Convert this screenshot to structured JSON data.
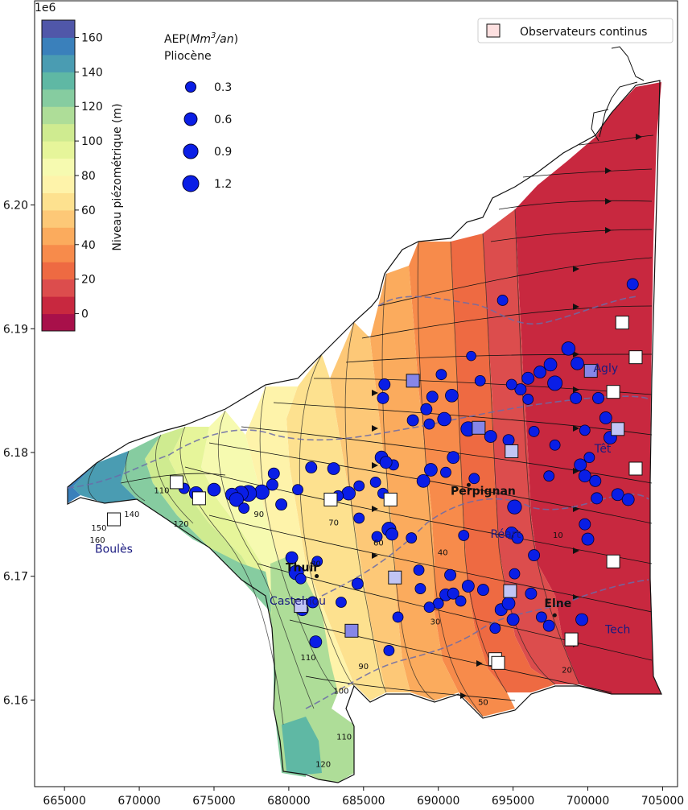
{
  "map": {
    "offset_label": "1e6",
    "x_ticks": [
      "665000",
      "670000",
      "675000",
      "680000",
      "685000",
      "690000",
      "695000",
      "700000",
      "705000"
    ],
    "x_tick_values": [
      665000,
      670000,
      675000,
      680000,
      685000,
      690000,
      695000,
      700000,
      705000
    ],
    "y_ticks": [
      "6.16",
      "6.17",
      "6.18",
      "6.19",
      "6.20"
    ],
    "y_tick_values": [
      6.16,
      6.17,
      6.18,
      6.19,
      6.2
    ],
    "x_range": [
      663000,
      706000
    ],
    "y_range": [
      6.153,
      6.2165
    ],
    "colorbar": {
      "label": "Niveau piézométrique (m)",
      "ticks": [
        "0",
        "20",
        "40",
        "60",
        "80",
        "100",
        "120",
        "140",
        "160"
      ],
      "tick_values": [
        0,
        20,
        40,
        60,
        80,
        100,
        120,
        140,
        160
      ],
      "range": [
        -10,
        170
      ],
      "colors": [
        "#a8104a",
        "#c8283f",
        "#dc4d4d",
        "#ee6a42",
        "#f78b4b",
        "#fbab5d",
        "#fdc877",
        "#fde18f",
        "#fef3aa",
        "#f6fab0",
        "#e6f59a",
        "#cfeb90",
        "#aedd98",
        "#86cca0",
        "#5fb8a4",
        "#4a9cb2",
        "#3a80bb",
        "#5057a9"
      ]
    },
    "size_legend": {
      "title_line1": "AEP(Mm³/an)",
      "title_line2": "Pliocène",
      "entries": [
        "0.3",
        "0.6",
        "0.9",
        "1.2"
      ],
      "entry_values": [
        0.3,
        0.6,
        0.9,
        1.2
      ]
    },
    "obs_legend": {
      "label": "Observateurs continus"
    },
    "cities": [
      {
        "label": "Perpignan",
        "x": 693000,
        "y": 6.1766
      },
      {
        "label": "Thuir",
        "x": 680900,
        "y": 6.1704
      },
      {
        "label": "Elne",
        "x": 698000,
        "y": 6.1675
      }
    ],
    "rivers": [
      {
        "label": "Boulès",
        "x": 668300,
        "y": 6.1719
      },
      {
        "label": "Castelnou",
        "x": 680600,
        "y": 6.1677
      },
      {
        "label": "Réart",
        "x": 694500,
        "y": 6.1731
      },
      {
        "label": "Têt",
        "x": 701000,
        "y": 6.18
      },
      {
        "label": "Agly",
        "x": 701200,
        "y": 6.1865
      },
      {
        "label": "Tech",
        "x": 702000,
        "y": 6.1654
      }
    ],
    "contour_labels": [
      {
        "t": "10",
        "x": 698000,
        "y": 6.1731
      },
      {
        "t": "20",
        "x": 698600,
        "y": 6.1622
      },
      {
        "t": "30",
        "x": 689800,
        "y": 6.1661
      },
      {
        "t": "40",
        "x": 690300,
        "y": 6.1717
      },
      {
        "t": "50",
        "x": 693000,
        "y": 6.1596
      },
      {
        "t": "60",
        "x": 686000,
        "y": 6.1725
      },
      {
        "t": "70",
        "x": 683000,
        "y": 6.1741
      },
      {
        "t": "80",
        "x": 681800,
        "y": 6.1708
      },
      {
        "t": "90",
        "x": 678000,
        "y": 6.1748
      },
      {
        "t": "90",
        "x": 685000,
        "y": 6.1625
      },
      {
        "t": "100",
        "x": 683500,
        "y": 6.1605
      },
      {
        "t": "110",
        "x": 671500,
        "y": 6.1767
      },
      {
        "t": "110",
        "x": 681300,
        "y": 6.1632
      },
      {
        "t": "110",
        "x": 683700,
        "y": 6.1568
      },
      {
        "t": "120",
        "x": 672800,
        "y": 6.174
      },
      {
        "t": "120",
        "x": 682300,
        "y": 6.1546
      },
      {
        "t": "140",
        "x": 669500,
        "y": 6.1748
      },
      {
        "t": "150",
        "x": 667300,
        "y": 6.1737
      },
      {
        "t": "160",
        "x": 667200,
        "y": 6.1727
      }
    ],
    "wells": [
      [
        694300,
        6.1923,
        0.3
      ],
      [
        703000,
        6.1936,
        0.4
      ],
      [
        692200,
        6.1878,
        0.2
      ],
      [
        698700,
        6.1884,
        0.7
      ],
      [
        699300,
        6.1872,
        0.6
      ],
      [
        697500,
        6.1871,
        0.6
      ],
      [
        696800,
        6.1865,
        0.5
      ],
      [
        696000,
        6.186,
        0.5
      ],
      [
        699200,
        6.1844,
        0.4
      ],
      [
        700700,
        6.1844,
        0.4
      ],
      [
        697800,
        6.1856,
        0.9
      ],
      [
        695500,
        6.1851,
        0.4
      ],
      [
        696000,
        6.1843,
        0.3
      ],
      [
        701200,
        6.1828,
        0.5
      ],
      [
        699800,
        6.1818,
        0.3
      ],
      [
        701500,
        6.1812,
        0.6
      ],
      [
        700100,
        6.1796,
        0.3
      ],
      [
        699500,
        6.179,
        0.5
      ],
      [
        699800,
        6.1781,
        0.5
      ],
      [
        700500,
        6.1777,
        0.4
      ],
      [
        702000,
        6.1766,
        0.5
      ],
      [
        702700,
        6.1762,
        0.5
      ],
      [
        700000,
        6.173,
        0.5
      ],
      [
        700600,
        6.1763,
        0.4
      ],
      [
        699800,
        6.1742,
        0.4
      ],
      [
        695100,
        6.1756,
        0.8
      ],
      [
        694900,
        6.1735,
        0.5
      ],
      [
        695300,
        6.1731,
        0.4
      ],
      [
        692400,
        6.1779,
        0.3
      ],
      [
        692000,
        6.1819,
        0.9
      ],
      [
        693500,
        6.1813,
        0.5
      ],
      [
        694700,
        6.181,
        0.4
      ],
      [
        689200,
        6.1835,
        0.4
      ],
      [
        692800,
        6.1858,
        0.3
      ],
      [
        689600,
        6.1845,
        0.4
      ],
      [
        690900,
        6.1846,
        0.6
      ],
      [
        690400,
        6.1827,
        0.7
      ],
      [
        689400,
        6.1823,
        0.3
      ],
      [
        690200,
        6.1863,
        0.3
      ],
      [
        688300,
        6.1826,
        0.4
      ],
      [
        686400,
        6.1855,
        0.4
      ],
      [
        686300,
        6.1844,
        0.4
      ],
      [
        691000,
        6.1796,
        0.5
      ],
      [
        689500,
        6.1786,
        0.6
      ],
      [
        689000,
        6.1777,
        0.6
      ],
      [
        687000,
        6.179,
        0.3
      ],
      [
        686200,
        6.1796,
        0.6
      ],
      [
        686500,
        6.1792,
        0.5
      ],
      [
        686300,
        6.1767,
        0.3
      ],
      [
        684000,
        6.1767,
        0.7
      ],
      [
        684700,
        6.1773,
        0.3
      ],
      [
        683000,
        6.1787,
        0.5
      ],
      [
        685800,
        6.1776,
        0.3
      ],
      [
        681500,
        6.1788,
        0.4
      ],
      [
        679000,
        6.1783,
        0.4
      ],
      [
        680600,
        6.177,
        0.3
      ],
      [
        678200,
        6.1768,
        0.9
      ],
      [
        678900,
        6.1774,
        0.4
      ],
      [
        677300,
        6.1767,
        1.2
      ],
      [
        676800,
        6.1767,
        0.9
      ],
      [
        676200,
        6.1766,
        0.6
      ],
      [
        676500,
        6.1762,
        0.8
      ],
      [
        675000,
        6.177,
        0.6
      ],
      [
        673800,
        6.1767,
        0.7
      ],
      [
        673000,
        6.1771,
        0.3
      ],
      [
        679500,
        6.1758,
        0.4
      ],
      [
        677000,
        6.1755,
        0.3
      ],
      [
        686700,
        6.1738,
        0.8
      ],
      [
        686900,
        6.1734,
        0.5
      ],
      [
        685900,
        6.1732,
        0.3
      ],
      [
        680200,
        6.1715,
        0.5
      ],
      [
        680500,
        6.1703,
        0.9
      ],
      [
        680800,
        6.1698,
        0.3
      ],
      [
        684600,
        6.1694,
        0.4
      ],
      [
        690000,
        6.1678,
        0.3
      ],
      [
        690500,
        6.1685,
        0.5
      ],
      [
        691000,
        6.1686,
        0.4
      ],
      [
        688700,
        6.1705,
        0.3
      ],
      [
        688800,
        6.169,
        0.3
      ],
      [
        689400,
        6.1675,
        0.3
      ],
      [
        691500,
        6.168,
        0.3
      ],
      [
        692000,
        6.1692,
        0.5
      ],
      [
        693000,
        6.1689,
        0.4
      ],
      [
        694200,
        6.1673,
        0.5
      ],
      [
        694700,
        6.1678,
        0.6
      ],
      [
        695000,
        6.1665,
        0.5
      ],
      [
        696200,
        6.1686,
        0.4
      ],
      [
        697400,
        6.166,
        0.4
      ],
      [
        696900,
        6.1667,
        0.3
      ],
      [
        699600,
        6.1665,
        0.5
      ],
      [
        680900,
        6.1673,
        0.5
      ],
      [
        681600,
        6.1679,
        0.4
      ],
      [
        683500,
        6.1679,
        0.3
      ],
      [
        681800,
        6.1647,
        0.5
      ],
      [
        686700,
        6.164,
        0.3
      ],
      [
        687300,
        6.1667,
        0.3
      ],
      [
        695100,
        6.1702,
        0.3
      ],
      [
        696400,
        6.1717,
        0.4
      ],
      [
        690800,
        6.1701,
        0.4
      ],
      [
        697400,
        6.1781,
        0.3
      ],
      [
        693800,
        6.1658,
        0.3
      ],
      [
        691700,
        6.1733,
        0.3
      ],
      [
        688200,
        6.1731,
        0.3
      ],
      [
        690500,
        6.1784,
        0.3
      ],
      [
        683300,
        6.1765,
        0.3
      ],
      [
        681900,
        6.1712,
        0.3
      ],
      [
        684700,
        6.1747,
        0.3
      ],
      [
        696400,
        6.1817,
        0.3
      ],
      [
        697800,
        6.1806,
        0.3
      ],
      [
        694900,
        6.1855,
        0.3
      ]
    ],
    "observers": [
      [
        702300,
        6.1905,
        100
      ],
      [
        703200,
        6.1877,
        100
      ],
      [
        700200,
        6.1866,
        40
      ],
      [
        701700,
        6.1849,
        100
      ],
      [
        702000,
        6.1819,
        90
      ],
      [
        703200,
        6.1787,
        100
      ],
      [
        694900,
        6.1801,
        50
      ],
      [
        692700,
        6.182,
        30
      ],
      [
        688300,
        6.1858,
        25
      ],
      [
        686800,
        6.1762,
        100
      ],
      [
        682800,
        6.1762,
        110
      ],
      [
        674000,
        6.1763,
        120
      ],
      [
        672500,
        6.1776,
        120
      ],
      [
        668300,
        6.1746,
        140
      ],
      [
        687100,
        6.1699,
        60
      ],
      [
        694800,
        6.1688,
        60
      ],
      [
        701700,
        6.1712,
        100
      ],
      [
        680800,
        6.1676,
        80
      ],
      [
        684200,
        6.1656,
        20
      ],
      [
        698900,
        6.1649,
        100
      ],
      [
        693800,
        6.1633,
        100
      ],
      [
        694000,
        6.163,
        100
      ]
    ]
  }
}
